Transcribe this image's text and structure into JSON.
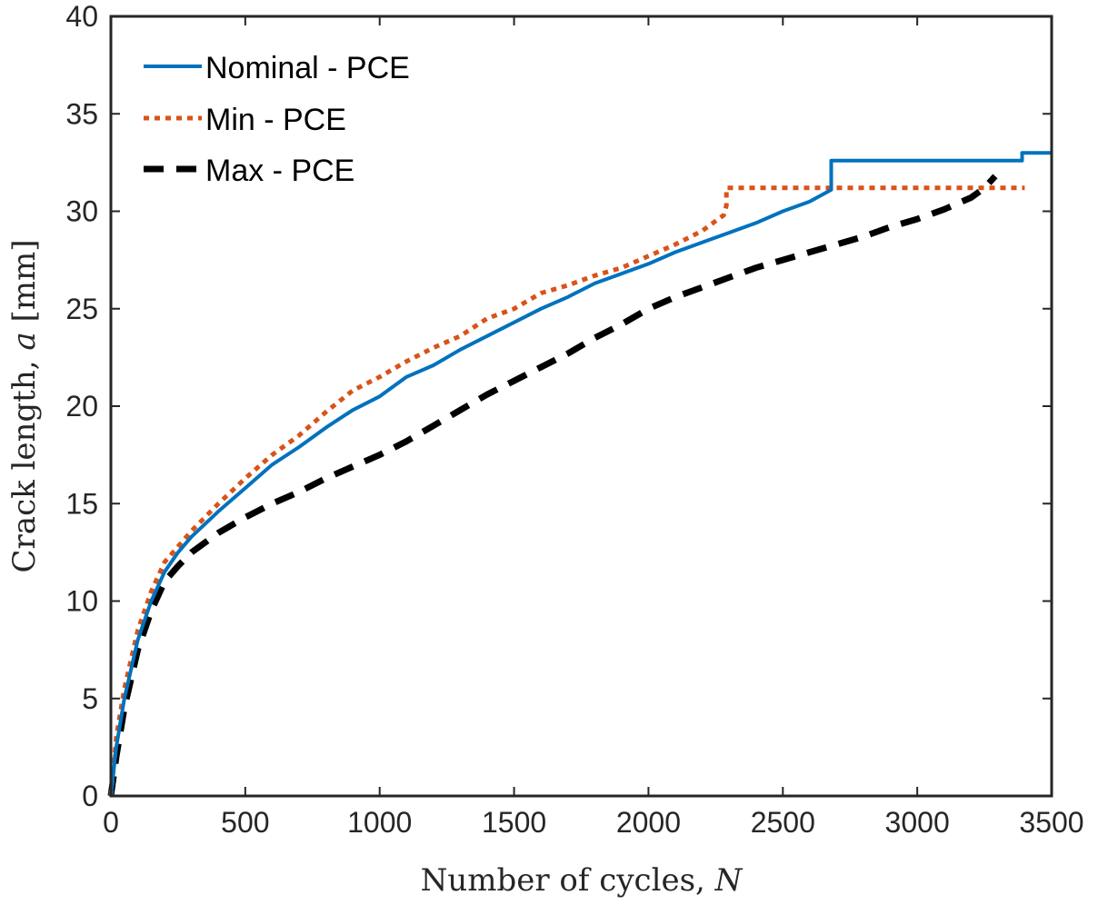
{
  "chart_data": {
    "type": "line",
    "title": "",
    "xlabel_text": "Number of cycles, ",
    "xlabel_var": "N",
    "ylabel_text": "Crack length, ",
    "ylabel_var": "a",
    "ylabel_unit": "[mm]",
    "xlim": [
      0,
      3500
    ],
    "ylim": [
      0,
      40
    ],
    "xticks": [
      0,
      500,
      1000,
      1500,
      2000,
      2500,
      3000,
      3500
    ],
    "yticks": [
      0,
      5,
      10,
      15,
      20,
      25,
      30,
      35,
      40
    ],
    "xtick_labels": [
      "0",
      "500",
      "1000",
      "1500",
      "2000",
      "2500",
      "3000",
      "3500"
    ],
    "ytick_labels": [
      "0",
      "5",
      "10",
      "15",
      "20",
      "25",
      "30",
      "35",
      "40"
    ],
    "grid": false,
    "legend_position": "top-left",
    "series": [
      {
        "name": "Nominal - PCE",
        "color": "#0072BD",
        "style": "solid",
        "x": [
          0,
          20,
          50,
          100,
          150,
          200,
          250,
          300,
          400,
          500,
          600,
          700,
          800,
          900,
          1000,
          1100,
          1200,
          1300,
          1400,
          1500,
          1600,
          1700,
          1800,
          1900,
          2000,
          2100,
          2200,
          2300,
          2400,
          2500,
          2600,
          2680,
          2680,
          3390,
          3390,
          3500
        ],
        "y": [
          0,
          2.5,
          5,
          8,
          10,
          11.5,
          12.5,
          13.3,
          14.6,
          15.8,
          17,
          17.9,
          18.9,
          19.8,
          20.5,
          21.5,
          22.1,
          22.9,
          23.6,
          24.3,
          25,
          25.6,
          26.3,
          26.8,
          27.3,
          27.9,
          28.4,
          28.9,
          29.4,
          30,
          30.5,
          31.1,
          32.6,
          32.6,
          33,
          33
        ]
      },
      {
        "name": "Min - PCE",
        "color": "#D95319",
        "style": "dotted",
        "x": [
          0,
          20,
          50,
          100,
          150,
          200,
          250,
          300,
          400,
          500,
          600,
          700,
          800,
          900,
          1000,
          1100,
          1200,
          1300,
          1400,
          1500,
          1600,
          1700,
          1800,
          1900,
          2000,
          2100,
          2200,
          2280,
          2290,
          2290,
          3400
        ],
        "y": [
          0,
          3,
          5.5,
          8.5,
          10.5,
          12,
          12.8,
          13.6,
          15,
          16.3,
          17.5,
          18.5,
          19.7,
          20.8,
          21.5,
          22.3,
          23,
          23.6,
          24.5,
          25,
          25.8,
          26.2,
          26.7,
          27.1,
          27.7,
          28.3,
          29,
          29.8,
          30.3,
          31.2,
          31.2
        ]
      },
      {
        "name": "Max - PCE",
        "color": "#000000",
        "style": "dashed",
        "x": [
          0,
          20,
          50,
          100,
          150,
          200,
          250,
          300,
          400,
          500,
          600,
          700,
          800,
          900,
          1000,
          1100,
          1200,
          1300,
          1400,
          1500,
          1600,
          1700,
          1800,
          1900,
          2000,
          2100,
          2200,
          2300,
          2400,
          2500,
          2600,
          2700,
          2800,
          2900,
          3000,
          3100,
          3200,
          3250,
          3290
        ],
        "y": [
          0,
          2,
          4.5,
          7.5,
          9.5,
          11,
          11.8,
          12.5,
          13.5,
          14.3,
          15,
          15.6,
          16.3,
          16.9,
          17.5,
          18.2,
          19,
          19.8,
          20.6,
          21.3,
          22,
          22.7,
          23.5,
          24.2,
          25,
          25.6,
          26.1,
          26.6,
          27.1,
          27.5,
          27.9,
          28.3,
          28.7,
          29.2,
          29.6,
          30.1,
          30.7,
          31.2,
          31.8
        ]
      }
    ]
  }
}
